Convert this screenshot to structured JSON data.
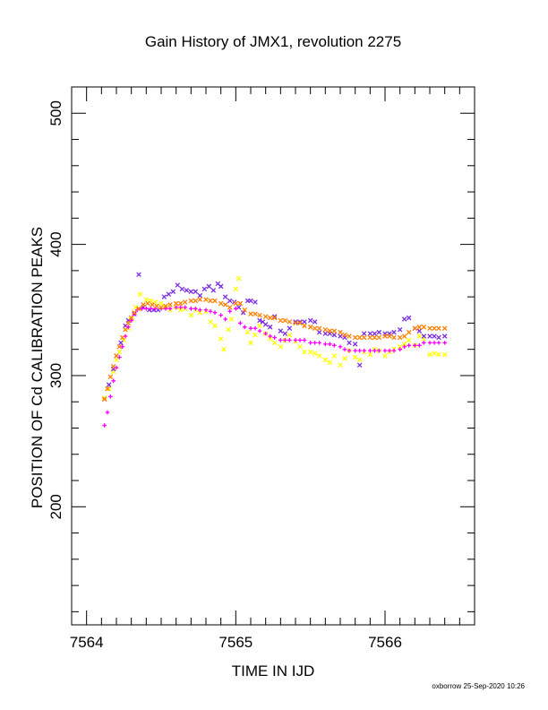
{
  "footer": "oxborrow 25-Sep-2020 10:26",
  "chart_data": {
    "type": "scatter",
    "title": "Gain History of JMX1, revolution 2275",
    "xlabel": "TIME IN IJD",
    "ylabel": "POSITION OF Cd CALIBRATION PEAKS",
    "xlim": [
      7563.9,
      7566.6
    ],
    "ylim": [
      110,
      520
    ],
    "xticks": [
      7564,
      7565,
      7566
    ],
    "yticks": [
      200,
      300,
      400,
      500
    ],
    "grid": false,
    "series": [
      {
        "marker": "x",
        "color": "#ffff00",
        "points": [
          [
            7564.12,
            283
          ],
          [
            7564.15,
            290
          ],
          [
            7564.18,
            303
          ],
          [
            7564.2,
            312
          ],
          [
            7564.22,
            318
          ],
          [
            7564.25,
            327
          ],
          [
            7564.28,
            336
          ],
          [
            7564.3,
            343
          ],
          [
            7564.33,
            352
          ],
          [
            7564.36,
            362
          ],
          [
            7564.4,
            358
          ],
          [
            7564.43,
            357
          ],
          [
            7564.46,
            356
          ],
          [
            7564.5,
            355
          ],
          [
            7564.53,
            352
          ],
          [
            7564.56,
            350
          ],
          [
            7564.6,
            352
          ],
          [
            7564.63,
            350
          ],
          [
            7564.66,
            351
          ],
          [
            7564.7,
            346
          ],
          [
            7564.73,
            350
          ],
          [
            7564.76,
            348
          ],
          [
            7564.8,
            349
          ],
          [
            7564.83,
            341
          ],
          [
            7564.86,
            338
          ],
          [
            7564.9,
            328
          ],
          [
            7564.92,
            320
          ],
          [
            7564.95,
            335
          ],
          [
            7564.97,
            343
          ],
          [
            7565.0,
            366
          ],
          [
            7565.02,
            374
          ],
          [
            7565.05,
            348
          ],
          [
            7565.08,
            333
          ],
          [
            7565.1,
            325
          ],
          [
            7565.13,
            331
          ],
          [
            7565.16,
            338
          ],
          [
            7565.2,
            332
          ],
          [
            7565.23,
            328
          ],
          [
            7565.26,
            325
          ],
          [
            7565.3,
            322
          ],
          [
            7565.33,
            327
          ],
          [
            7565.36,
            331
          ],
          [
            7565.4,
            326
          ],
          [
            7565.43,
            322
          ],
          [
            7565.46,
            318
          ],
          [
            7565.5,
            318
          ],
          [
            7565.53,
            317
          ],
          [
            7565.56,
            315
          ],
          [
            7565.6,
            312
          ],
          [
            7565.63,
            310
          ],
          [
            7565.66,
            315
          ],
          [
            7565.7,
            308
          ],
          [
            7565.73,
            313
          ],
          [
            7565.76,
            319
          ],
          [
            7565.8,
            314
          ],
          [
            7565.83,
            312
          ],
          [
            7565.86,
            318
          ],
          [
            7565.9,
            316
          ],
          [
            7565.93,
            320
          ],
          [
            7565.96,
            319
          ],
          [
            7566.0,
            315
          ],
          [
            7566.03,
            318
          ],
          [
            7566.06,
            320
          ],
          [
            7566.1,
            322
          ],
          [
            7566.13,
            324
          ],
          [
            7566.16,
            327
          ],
          [
            7566.2,
            323
          ],
          [
            7566.23,
            330
          ],
          [
            7566.26,
            328
          ],
          [
            7566.3,
            316
          ],
          [
            7566.33,
            317
          ],
          [
            7566.36,
            316
          ],
          [
            7566.4,
            316
          ]
        ]
      },
      {
        "marker": "x",
        "color": "#7a2be2",
        "points": [
          [
            7564.12,
            282
          ],
          [
            7564.15,
            293
          ],
          [
            7564.18,
            305
          ],
          [
            7564.2,
            315
          ],
          [
            7564.23,
            325
          ],
          [
            7564.26,
            338
          ],
          [
            7564.28,
            342
          ],
          [
            7564.32,
            347
          ],
          [
            7564.35,
            377
          ],
          [
            7564.38,
            352
          ],
          [
            7564.42,
            350
          ],
          [
            7564.45,
            350
          ],
          [
            7564.48,
            350
          ],
          [
            7564.52,
            360
          ],
          [
            7564.55,
            362
          ],
          [
            7564.58,
            364
          ],
          [
            7564.61,
            369
          ],
          [
            7564.64,
            366
          ],
          [
            7564.67,
            365
          ],
          [
            7564.7,
            364
          ],
          [
            7564.73,
            364
          ],
          [
            7564.76,
            361
          ],
          [
            7564.79,
            366
          ],
          [
            7564.82,
            368
          ],
          [
            7564.85,
            365
          ],
          [
            7564.88,
            370
          ],
          [
            7564.9,
            368
          ],
          [
            7564.93,
            360
          ],
          [
            7564.96,
            357
          ],
          [
            7564.99,
            356
          ],
          [
            7565.02,
            352
          ],
          [
            7565.05,
            348
          ],
          [
            7565.08,
            357
          ],
          [
            7565.1,
            357
          ],
          [
            7565.13,
            356
          ],
          [
            7565.16,
            342
          ],
          [
            7565.18,
            341
          ],
          [
            7565.2,
            339
          ],
          [
            7565.23,
            337
          ],
          [
            7565.26,
            345
          ],
          [
            7565.3,
            334
          ],
          [
            7565.33,
            332
          ],
          [
            7565.36,
            336
          ],
          [
            7565.4,
            341
          ],
          [
            7565.43,
            341
          ],
          [
            7565.46,
            341
          ],
          [
            7565.5,
            342
          ],
          [
            7565.53,
            341
          ],
          [
            7565.56,
            333
          ],
          [
            7565.6,
            332
          ],
          [
            7565.63,
            332
          ],
          [
            7565.66,
            331
          ],
          [
            7565.7,
            330
          ],
          [
            7565.73,
            329
          ],
          [
            7565.76,
            325
          ],
          [
            7565.8,
            324
          ],
          [
            7565.83,
            308
          ],
          [
            7565.86,
            332
          ],
          [
            7565.9,
            332
          ],
          [
            7565.93,
            332
          ],
          [
            7565.96,
            333
          ],
          [
            7566.0,
            332
          ],
          [
            7566.03,
            332
          ],
          [
            7566.06,
            333
          ],
          [
            7566.1,
            335
          ],
          [
            7566.13,
            343
          ],
          [
            7566.16,
            344
          ],
          [
            7566.2,
            336
          ],
          [
            7566.23,
            334
          ],
          [
            7566.26,
            330
          ],
          [
            7566.3,
            330
          ],
          [
            7566.33,
            330
          ],
          [
            7566.36,
            329
          ],
          [
            7566.4,
            330
          ]
        ]
      },
      {
        "marker": "+",
        "color": "#ff00ff",
        "points": [
          [
            7564.12,
            262
          ],
          [
            7564.14,
            272
          ],
          [
            7564.16,
            284
          ],
          [
            7564.18,
            296
          ],
          [
            7564.2,
            306
          ],
          [
            7564.22,
            314
          ],
          [
            7564.24,
            322
          ],
          [
            7564.26,
            330
          ],
          [
            7564.28,
            337
          ],
          [
            7564.3,
            342
          ],
          [
            7564.32,
            347
          ],
          [
            7564.34,
            350
          ],
          [
            7564.37,
            351
          ],
          [
            7564.4,
            351
          ],
          [
            7564.43,
            351
          ],
          [
            7564.46,
            351
          ],
          [
            7564.5,
            351
          ],
          [
            7564.53,
            351
          ],
          [
            7564.56,
            351
          ],
          [
            7564.6,
            352
          ],
          [
            7564.63,
            352
          ],
          [
            7564.66,
            352
          ],
          [
            7564.7,
            351
          ],
          [
            7564.73,
            351
          ],
          [
            7564.76,
            350
          ],
          [
            7564.8,
            350
          ],
          [
            7564.83,
            349
          ],
          [
            7564.86,
            348
          ],
          [
            7564.9,
            346
          ],
          [
            7564.93,
            343
          ],
          [
            7564.96,
            349
          ],
          [
            7565.0,
            351
          ],
          [
            7565.03,
            340
          ],
          [
            7565.06,
            337
          ],
          [
            7565.1,
            336
          ],
          [
            7565.13,
            336
          ],
          [
            7565.16,
            334
          ],
          [
            7565.2,
            332
          ],
          [
            7565.23,
            330
          ],
          [
            7565.26,
            329
          ],
          [
            7565.3,
            327
          ],
          [
            7565.33,
            327
          ],
          [
            7565.36,
            327
          ],
          [
            7565.4,
            327
          ],
          [
            7565.43,
            327
          ],
          [
            7565.46,
            327
          ],
          [
            7565.5,
            325
          ],
          [
            7565.53,
            325
          ],
          [
            7565.56,
            325
          ],
          [
            7565.6,
            324
          ],
          [
            7565.63,
            324
          ],
          [
            7565.66,
            323
          ],
          [
            7565.7,
            322
          ],
          [
            7565.73,
            320
          ],
          [
            7565.76,
            319
          ],
          [
            7565.8,
            319
          ],
          [
            7565.83,
            319
          ],
          [
            7565.86,
            319
          ],
          [
            7565.9,
            319
          ],
          [
            7565.93,
            319
          ],
          [
            7565.96,
            319
          ],
          [
            7566.0,
            319
          ],
          [
            7566.03,
            319
          ],
          [
            7566.06,
            319
          ],
          [
            7566.1,
            320
          ],
          [
            7566.13,
            322
          ],
          [
            7566.16,
            323
          ],
          [
            7566.2,
            323
          ],
          [
            7566.23,
            323
          ],
          [
            7566.26,
            325
          ],
          [
            7566.3,
            325
          ],
          [
            7566.33,
            325
          ],
          [
            7566.36,
            325
          ],
          [
            7566.4,
            325
          ]
        ]
      },
      {
        "marker": "x",
        "color": "#ff7f00",
        "points": [
          [
            7564.12,
            282
          ],
          [
            7564.14,
            290
          ],
          [
            7564.16,
            299
          ],
          [
            7564.18,
            307
          ],
          [
            7564.2,
            315
          ],
          [
            7564.22,
            322
          ],
          [
            7564.24,
            329
          ],
          [
            7564.26,
            335
          ],
          [
            7564.28,
            340
          ],
          [
            7564.3,
            344
          ],
          [
            7564.32,
            348
          ],
          [
            7564.35,
            351
          ],
          [
            7564.38,
            354
          ],
          [
            7564.41,
            355
          ],
          [
            7564.44,
            354
          ],
          [
            7564.47,
            353
          ],
          [
            7564.5,
            352
          ],
          [
            7564.53,
            353
          ],
          [
            7564.56,
            354
          ],
          [
            7564.6,
            355
          ],
          [
            7564.63,
            355
          ],
          [
            7564.66,
            356
          ],
          [
            7564.7,
            357
          ],
          [
            7564.73,
            357
          ],
          [
            7564.76,
            358
          ],
          [
            7564.8,
            358
          ],
          [
            7564.83,
            357
          ],
          [
            7564.86,
            357
          ],
          [
            7564.9,
            355
          ],
          [
            7564.93,
            354
          ],
          [
            7564.96,
            352
          ],
          [
            7565.0,
            355
          ],
          [
            7565.03,
            355
          ],
          [
            7565.06,
            350
          ],
          [
            7565.1,
            347
          ],
          [
            7565.13,
            347
          ],
          [
            7565.16,
            346
          ],
          [
            7565.2,
            345
          ],
          [
            7565.23,
            344
          ],
          [
            7565.26,
            344
          ],
          [
            7565.3,
            342
          ],
          [
            7565.33,
            342
          ],
          [
            7565.36,
            341
          ],
          [
            7565.4,
            340
          ],
          [
            7565.43,
            340
          ],
          [
            7565.46,
            338
          ],
          [
            7565.5,
            337
          ],
          [
            7565.53,
            336
          ],
          [
            7565.56,
            336
          ],
          [
            7565.6,
            335
          ],
          [
            7565.63,
            334
          ],
          [
            7565.66,
            334
          ],
          [
            7565.7,
            333
          ],
          [
            7565.73,
            331
          ],
          [
            7565.76,
            330
          ],
          [
            7565.8,
            329
          ],
          [
            7565.83,
            329
          ],
          [
            7565.86,
            329
          ],
          [
            7565.9,
            329
          ],
          [
            7565.93,
            329
          ],
          [
            7565.96,
            329
          ],
          [
            7566.0,
            330
          ],
          [
            7566.03,
            330
          ],
          [
            7566.06,
            329
          ],
          [
            7566.1,
            329
          ],
          [
            7566.13,
            330
          ],
          [
            7566.16,
            333
          ],
          [
            7566.2,
            336
          ],
          [
            7566.23,
            337
          ],
          [
            7566.26,
            337
          ],
          [
            7566.3,
            336
          ],
          [
            7566.33,
            336
          ],
          [
            7566.36,
            336
          ],
          [
            7566.4,
            336
          ]
        ]
      }
    ]
  }
}
